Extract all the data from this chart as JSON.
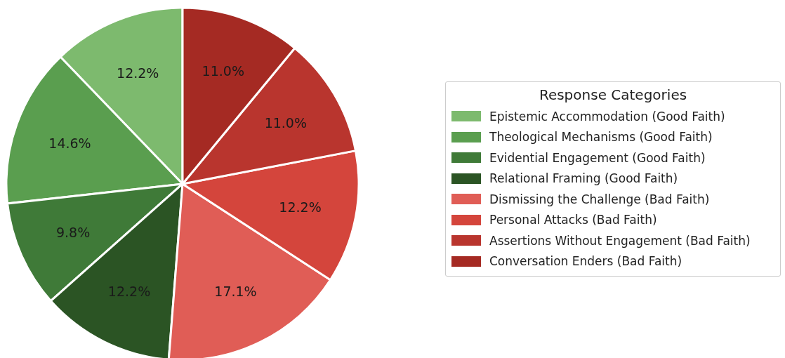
{
  "chart_data": {
    "type": "pie",
    "legend_title": "Response Categories",
    "legend": "right",
    "categories": [
      "Epistemic Accommodation (Good Faith)",
      "Theological Mechanisms (Good Faith)",
      "Evidential Engagement (Good Faith)",
      "Relational Framing (Good Faith)",
      "Dismissing the Challenge (Bad Faith)",
      "Personal Attacks (Bad Faith)",
      "Assertions Without Engagement (Bad Faith)",
      "Conversation Enders (Bad Faith)"
    ],
    "values": [
      12.2,
      14.6,
      9.8,
      12.2,
      17.1,
      12.2,
      11.0,
      11.0
    ],
    "value_labels": [
      "12.2%",
      "14.6%",
      "9.8%",
      "12.2%",
      "17.1%",
      "12.2%",
      "11.0%",
      "11.0%"
    ],
    "colors": [
      "#7dba6e",
      "#5a9e4f",
      "#3f7a38",
      "#2b5424",
      "#e05d56",
      "#d4453c",
      "#b9352e",
      "#a52a23"
    ]
  }
}
